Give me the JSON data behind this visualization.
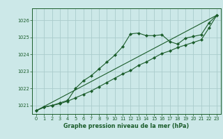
{
  "title": "Graphe pression niveau de la mer (hPa)",
  "background_color": "#cce8e8",
  "grid_color": "#aacccc",
  "line_color": "#1a5c2a",
  "xlim": [
    -0.5,
    23.5
  ],
  "ylim": [
    1020.5,
    1026.7
  ],
  "yticks": [
    1021,
    1022,
    1023,
    1024,
    1025,
    1026
  ],
  "xticks": [
    0,
    1,
    2,
    3,
    4,
    5,
    6,
    7,
    8,
    9,
    10,
    11,
    12,
    13,
    14,
    15,
    16,
    17,
    18,
    19,
    20,
    21,
    22,
    23
  ],
  "series1_x": [
    0,
    1,
    2,
    3,
    4,
    5,
    6,
    7,
    8,
    9,
    10,
    11,
    12,
    13,
    14,
    15,
    16,
    17,
    18,
    19,
    20,
    21,
    22,
    23
  ],
  "series1_y": [
    1020.7,
    1020.9,
    1021.0,
    1021.15,
    1021.3,
    1022.0,
    1022.45,
    1022.75,
    1023.15,
    1023.55,
    1023.95,
    1024.45,
    1025.2,
    1025.25,
    1025.1,
    1025.1,
    1025.15,
    1024.75,
    1024.6,
    1024.95,
    1025.05,
    1025.15,
    1025.85,
    1026.3
  ],
  "series2_x": [
    0,
    1,
    2,
    3,
    4,
    5,
    6,
    7,
    8,
    9,
    10,
    11,
    12,
    13,
    14,
    15,
    16,
    17,
    18,
    19,
    20,
    21,
    22,
    23
  ],
  "series2_y": [
    1020.7,
    1020.9,
    1021.0,
    1021.1,
    1021.25,
    1021.45,
    1021.65,
    1021.85,
    1022.1,
    1022.35,
    1022.6,
    1022.85,
    1023.05,
    1023.35,
    1023.55,
    1023.8,
    1024.05,
    1024.2,
    1024.4,
    1024.55,
    1024.7,
    1024.85,
    1025.55,
    1026.3
  ],
  "series3_x": [
    0,
    23
  ],
  "series3_y": [
    1020.7,
    1026.3
  ]
}
